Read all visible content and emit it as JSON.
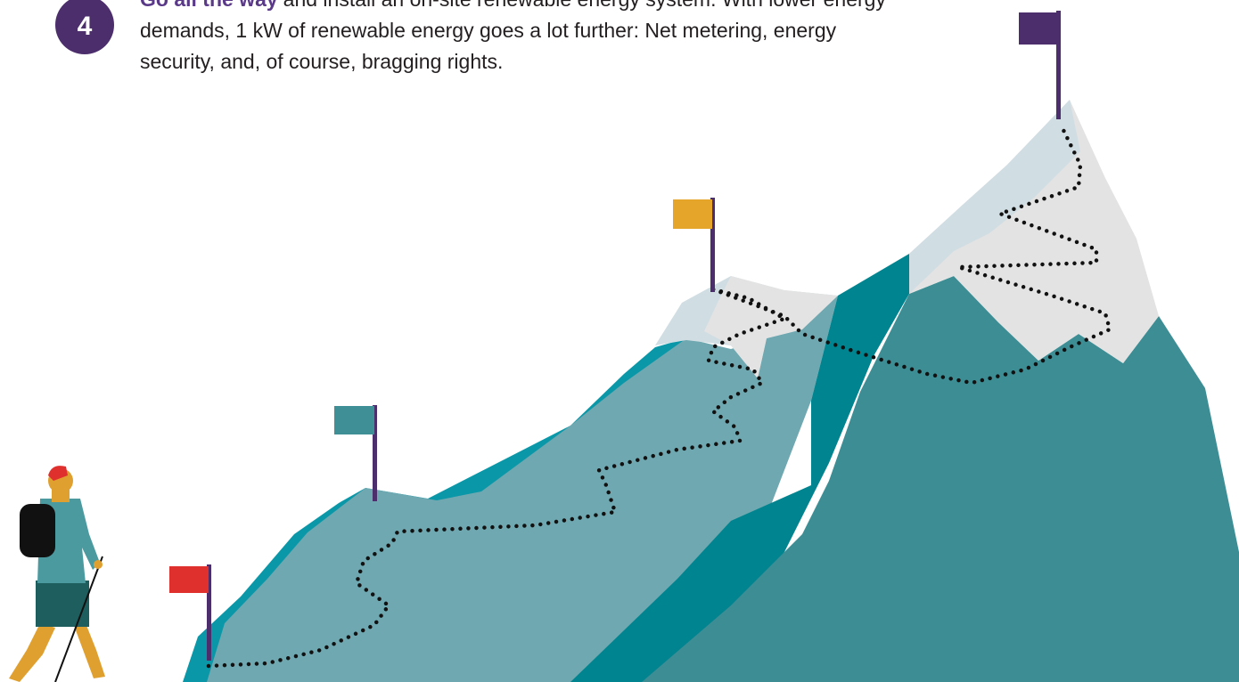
{
  "step": {
    "number": "4",
    "lead": "Go all the way",
    "lines": [
      "and install an on-site renewable energy system. With lower energy",
      "demands, 1 kW of renewable energy goes a lot further: Net metering, energy",
      "security, and, of course, bragging rights."
    ]
  }
}
